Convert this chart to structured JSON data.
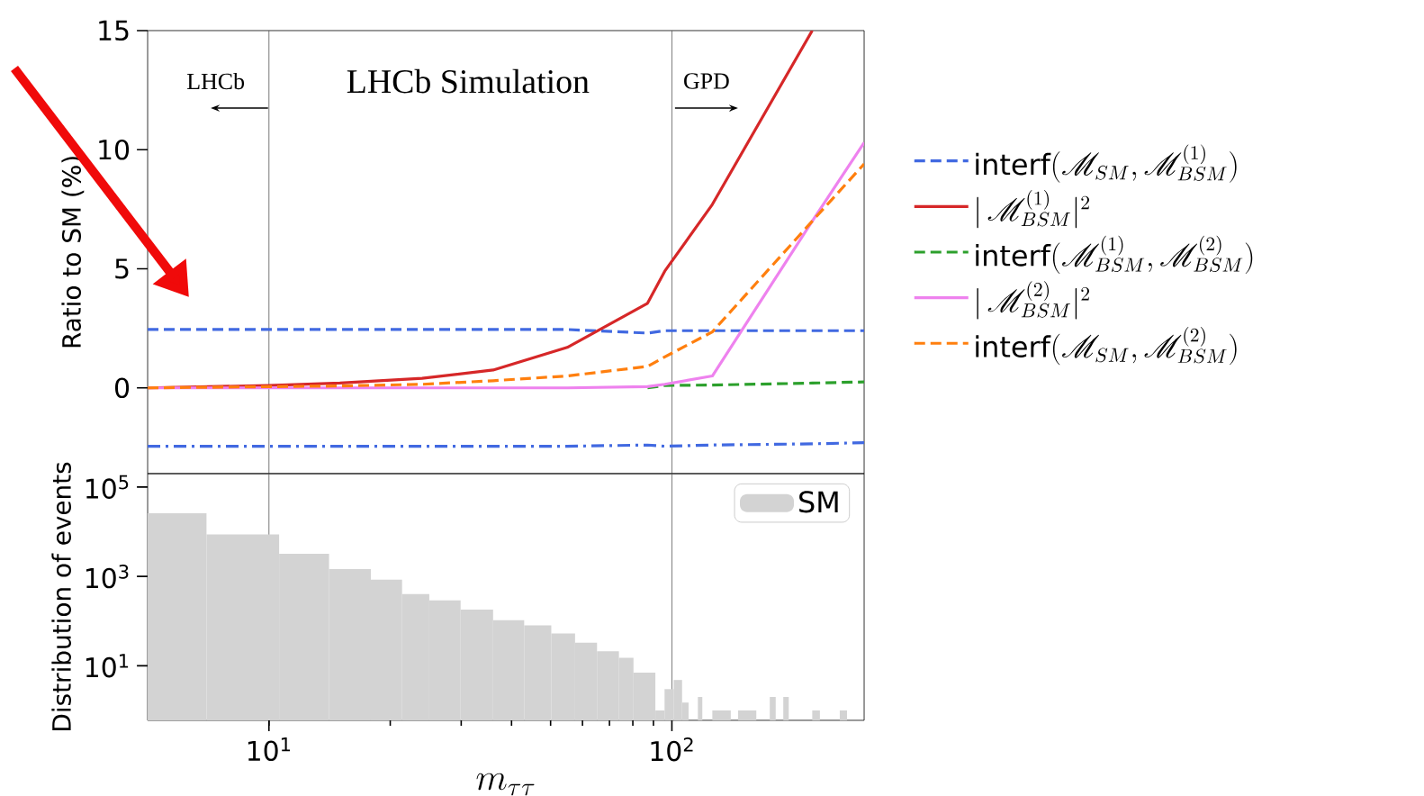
{
  "chart_data": [
    {
      "type": "line",
      "ylabel": "Ratio to SM (%)",
      "log": "x",
      "xlim": [
        5,
        300
      ],
      "ylim": [
        -3.6,
        15
      ],
      "yticks": [
        0,
        5,
        10,
        15
      ],
      "tick_labels": "y",
      "legend": "right",
      "x": [
        5,
        10,
        15,
        24,
        36,
        55,
        87,
        96,
        126,
        223,
        300
      ],
      "series": [
        {
          "name": "\\mathrm{interf}(\\mathscr{M}_{SM}, \\mathscr{M}^{(1)}_{BSM})",
          "color": "#4169e1",
          "line_style": "dashed",
          "values": [
            2.45,
            2.45,
            2.45,
            2.45,
            2.45,
            2.45,
            2.3,
            2.4,
            2.4,
            2.4,
            2.4
          ]
        },
        {
          "name": "|\\,\\mathscr{M}^{(1)}_{BSM}|^2",
          "color": "#d62728",
          "line_style": "solid",
          "values": [
            0,
            0.1,
            0.2,
            0.4,
            0.75,
            1.7,
            3.55,
            4.9,
            7.7,
            15,
            null
          ]
        },
        {
          "name": "\\mathrm{interf}(\\mathscr{M}^{(1)}_{BSM}, \\mathscr{M}^{(2)}_{BSM})",
          "color": "#2ca02c",
          "line_style": "dashed",
          "values": [
            null,
            null,
            null,
            null,
            null,
            null,
            0,
            0.1,
            0.12,
            0.2,
            0.25
          ]
        },
        {
          "name": "|\\,\\mathscr{M}^{(2)}_{BSM}|^2",
          "color": "#ee82ee",
          "line_style": "solid",
          "values": [
            0,
            0,
            0,
            0,
            0,
            0,
            0.05,
            0.15,
            0.5,
            7.0,
            10.3
          ]
        },
        {
          "name": "\\mathrm{interf}(\\mathscr{M}_{SM}, \\mathscr{M}^{(2)}_{BSM})",
          "color": "#ff7f0e",
          "line_style": "dashed",
          "values": [
            0,
            0.05,
            0.08,
            0.15,
            0.3,
            0.5,
            0.9,
            1.3,
            2.35,
            7.0,
            9.4
          ]
        },
        {
          "color": "#4169e1",
          "line_style": "dashdot",
          "values": [
            -2.45,
            -2.45,
            -2.45,
            -2.45,
            -2.45,
            -2.45,
            -2.4,
            -2.45,
            -2.4,
            -2.35,
            -2.3
          ]
        }
      ],
      "ref_lines": [
        {
          "axis": "x",
          "value": 10,
          "color": "#555555"
        },
        {
          "axis": "x",
          "value": 100,
          "color": "#555555"
        }
      ],
      "annotations": [
        "LHCb",
        "LHCb Simulation",
        "GPD"
      ]
    },
    {
      "type": "histogram",
      "ylabel": "Distribution of events",
      "xlabel": "m_{\\tau\\tau}",
      "log": "xy",
      "xlim": [
        5,
        300
      ],
      "ylim": [
        0.6,
        200000
      ],
      "xticks": [
        {
          "value": 10,
          "label": "10$^{1}$"
        },
        {
          "value": 100,
          "label": "10$^{2}$"
        }
      ],
      "yticks": [
        {
          "value": 10,
          "label": "10$^{1}$"
        },
        {
          "value": 1000,
          "label": "10$^{3}$"
        },
        {
          "value": 100000,
          "label": "10$^{5}$"
        }
      ],
      "legend": "top right",
      "bins": [
        5,
        7.0,
        10.6,
        14.1,
        17.9,
        21.4,
        25.0,
        29.9,
        36.0,
        43.0,
        50.2,
        57.5,
        65.2,
        73.9,
        80.3,
        91.0,
        95.9,
        101,
        106,
        110,
        116,
        119,
        126,
        140,
        146,
        162,
        175,
        181,
        189,
        195,
        223,
        233,
        261,
        272
      ],
      "series": [
        {
          "name": "SM",
          "color": "#d3d3d3",
          "values": [
            26000,
            8700,
            3200,
            1450,
            850,
            400,
            290,
            180,
            105,
            80,
            53,
            33,
            21,
            15,
            7,
            1,
            3,
            4.8,
            1.5,
            null,
            2,
            null,
            1,
            null,
            1,
            null,
            2,
            null,
            2,
            null,
            1,
            null,
            1
          ]
        }
      ],
      "ref_lines": [
        {
          "axis": "x",
          "value": 10,
          "color": "#555555"
        },
        {
          "axis": "x",
          "value": 100,
          "color": "#555555"
        }
      ]
    }
  ]
}
